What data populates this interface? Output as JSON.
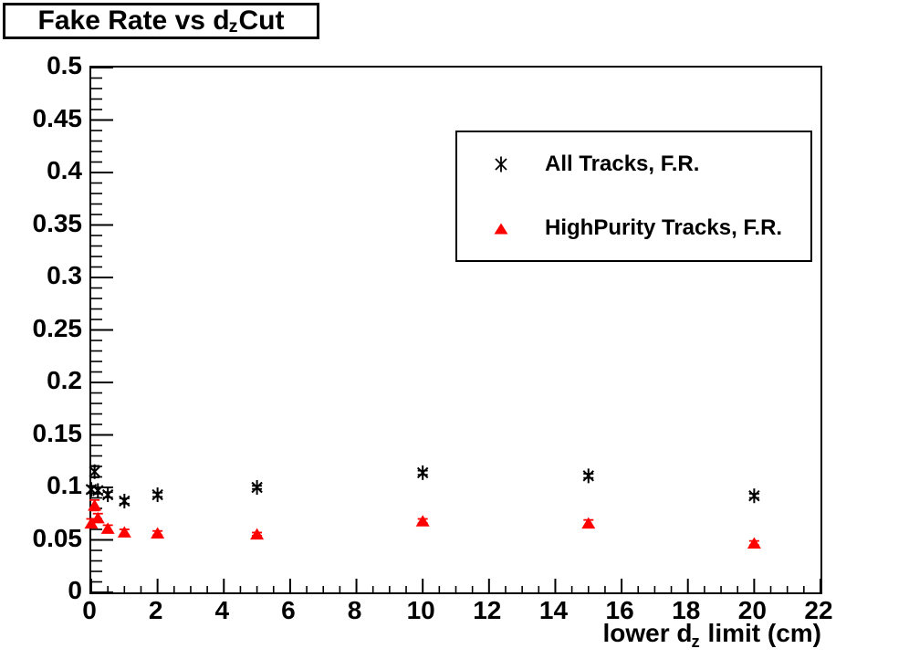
{
  "title": {
    "prefix": "Fake Rate vs d",
    "subscript": "z",
    "suffix": " Cut"
  },
  "axes": {
    "x": {
      "label_prefix": "lower d",
      "label_subscript": "z",
      "label_suffix": " limit (cm)",
      "tick_labels": [
        "0",
        "2",
        "4",
        "6",
        "8",
        "10",
        "12",
        "14",
        "16",
        "18",
        "20",
        "22"
      ],
      "minor_step": 0.5
    },
    "y": {
      "tick_labels": [
        "0",
        "0.05",
        "0.1",
        "0.15",
        "0.2",
        "0.25",
        "0.3",
        "0.35",
        "0.4",
        "0.45",
        "0.5"
      ],
      "minor_step": 0.01
    }
  },
  "chart_data": {
    "type": "scatter",
    "title": "Fake Rate vs d_z Cut",
    "xlabel": "lower d_z limit (cm)",
    "ylabel": "",
    "xlim": [
      0,
      22
    ],
    "ylim": [
      0,
      0.5
    ],
    "grid": false,
    "legend_position": "upper right",
    "x": [
      0,
      0.1,
      0.2,
      0.5,
      1,
      2,
      5,
      10,
      15,
      20
    ],
    "series": [
      {
        "name": "All Tracks, F.R.",
        "marker": "asterisk",
        "color": "#000000",
        "values": [
          0.098,
          0.115,
          0.097,
          0.093,
          0.087,
          0.093,
          0.1,
          0.114,
          0.111,
          0.092
        ],
        "yerr": [
          0.0035,
          0.0055,
          0.003,
          0.0025,
          0.0025,
          0.002,
          0.0015,
          0.002,
          0.002,
          0.002
        ]
      },
      {
        "name": "HighPurity Tracks, F.R.",
        "marker": "triangle-filled",
        "color": "#ff0000",
        "values": [
          0.066,
          0.083,
          0.071,
          0.061,
          0.0575,
          0.0565,
          0.0555,
          0.068,
          0.066,
          0.047
        ],
        "yerr": [
          0.004,
          0.005,
          0.004,
          0.003,
          0.0025,
          0.002,
          0.0015,
          0.002,
          0.003,
          0.002
        ]
      }
    ]
  }
}
